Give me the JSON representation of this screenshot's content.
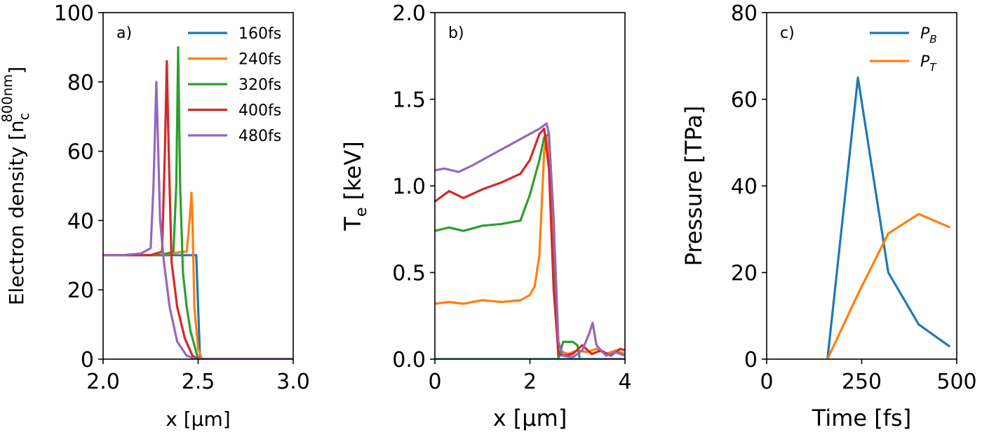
{
  "colors": {
    "blue": "#1f77b4",
    "orange": "#ff7f0e",
    "green": "#2ca02c",
    "red": "#d62728",
    "purple": "#9467bd"
  },
  "chart_data": [
    {
      "type": "line",
      "panel_label": "a)",
      "xlabel": "x [μm]",
      "ylabel_text": "Electron density [n",
      "ylabel_sub": "c",
      "ylabel_sup": "800nm",
      "ylabel_close": "]",
      "xlim": [
        2.0,
        3.0
      ],
      "ylim": [
        0,
        100
      ],
      "xticks": [
        2.0,
        2.5,
        3.0
      ],
      "xtick_labels": [
        "2.0",
        "2.5",
        "3.0"
      ],
      "yticks": [
        0,
        20,
        40,
        60,
        80,
        100
      ],
      "ytick_labels": [
        "0",
        "20",
        "40",
        "60",
        "80",
        "100"
      ],
      "legend_position": "top-right",
      "series": [
        {
          "name": "160fs",
          "color": "blue",
          "x": [
            2.0,
            2.49,
            2.49,
            2.5,
            2.51,
            3.0
          ],
          "y": [
            30,
            30,
            30,
            15,
            0,
            0
          ]
        },
        {
          "name": "240fs",
          "color": "orange",
          "x": [
            2.0,
            2.3,
            2.42,
            2.44,
            2.455,
            2.465,
            2.47,
            2.48,
            2.5,
            2.52,
            3.0
          ],
          "y": [
            30,
            30,
            31,
            31,
            40,
            48,
            40,
            15,
            3,
            0,
            0
          ]
        },
        {
          "name": "320fs",
          "color": "green",
          "x": [
            2.0,
            2.3,
            2.37,
            2.385,
            2.395,
            2.405,
            2.42,
            2.44,
            2.46,
            2.49,
            2.5,
            3.0
          ],
          "y": [
            30,
            30,
            31,
            50,
            90,
            50,
            25,
            15,
            8,
            2,
            0,
            0
          ]
        },
        {
          "name": "400fs",
          "color": "red",
          "x": [
            2.0,
            2.25,
            2.31,
            2.325,
            2.335,
            2.345,
            2.36,
            2.39,
            2.43,
            2.47,
            2.5,
            3.0
          ],
          "y": [
            30,
            30,
            31,
            60,
            86,
            60,
            28,
            15,
            6,
            1,
            0,
            0
          ]
        },
        {
          "name": "480fs",
          "color": "purple",
          "x": [
            2.0,
            2.1,
            2.2,
            2.25,
            2.265,
            2.28,
            2.29,
            2.3,
            2.32,
            2.35,
            2.39,
            2.44,
            2.49,
            3.0
          ],
          "y": [
            30,
            30,
            30.5,
            32,
            50,
            80,
            60,
            40,
            28,
            15,
            5,
            1,
            0,
            0
          ]
        }
      ]
    },
    {
      "type": "line",
      "panel_label": "b)",
      "xlabel": "x [μm]",
      "ylabel_text": "T",
      "ylabel_sub": "e",
      "ylabel_close": " [keV]",
      "xlim": [
        0,
        4
      ],
      "ylim": [
        0,
        2.0
      ],
      "xticks": [
        0,
        2,
        4
      ],
      "xtick_labels": [
        "0",
        "2",
        "4"
      ],
      "yticks": [
        0,
        0.5,
        1.0,
        1.5,
        2.0
      ],
      "ytick_labels": [
        "0.0",
        "0.5",
        "1.0",
        "1.5",
        "2.0"
      ],
      "series": [
        {
          "name": "160fs",
          "color": "blue",
          "x": [
            0,
            4
          ],
          "y": [
            0,
            0
          ]
        },
        {
          "name": "240fs",
          "color": "orange",
          "x": [
            0,
            0.3,
            0.6,
            1.0,
            1.4,
            1.8,
            2.0,
            2.1,
            2.2,
            2.25,
            2.3,
            2.35,
            2.45,
            2.55,
            2.6,
            2.8,
            3.0,
            3.2,
            3.4,
            3.6,
            3.8,
            4.0
          ],
          "y": [
            0.32,
            0.33,
            0.32,
            0.34,
            0.33,
            0.34,
            0.37,
            0.42,
            0.6,
            0.9,
            1.2,
            1.28,
            1.0,
            0.4,
            0.05,
            0.03,
            0.05,
            0.04,
            0.06,
            0.03,
            0.05,
            0.03
          ]
        },
        {
          "name": "320fs",
          "color": "green",
          "x": [
            0,
            0.3,
            0.6,
            1.0,
            1.4,
            1.8,
            2.0,
            2.1,
            2.2,
            2.3,
            2.4,
            2.5,
            2.55,
            2.6,
            2.7,
            2.9,
            3.0,
            3.05
          ],
          "y": [
            0.74,
            0.76,
            0.74,
            0.77,
            0.78,
            0.8,
            0.95,
            1.05,
            1.15,
            1.28,
            1.3,
            0.8,
            0.3,
            0.0,
            0.1,
            0.1,
            0.08,
            0.0
          ]
        },
        {
          "name": "400fs",
          "color": "red",
          "x": [
            0,
            0.3,
            0.6,
            1.0,
            1.4,
            1.8,
            2.0,
            2.2,
            2.3,
            2.4,
            2.5,
            2.6,
            2.7,
            2.9,
            3.1,
            3.3,
            3.5,
            3.7,
            3.9,
            4.0
          ],
          "y": [
            0.91,
            0.97,
            0.93,
            0.98,
            1.02,
            1.07,
            1.15,
            1.3,
            1.33,
            1.1,
            0.4,
            0.03,
            0.02,
            0.03,
            0.08,
            0.03,
            0.05,
            0.02,
            0.06,
            0.05
          ]
        },
        {
          "name": "480fs",
          "color": "purple",
          "x": [
            0,
            0.2,
            0.5,
            0.8,
            1.2,
            1.6,
            2.0,
            2.2,
            2.35,
            2.4,
            2.5,
            2.6,
            2.7,
            2.9,
            3.1,
            3.25,
            3.32,
            3.4,
            3.6,
            3.8,
            4.0
          ],
          "y": [
            1.09,
            1.1,
            1.08,
            1.12,
            1.18,
            1.24,
            1.3,
            1.33,
            1.36,
            1.3,
            0.8,
            0.1,
            0.02,
            0.01,
            0.05,
            0.15,
            0.21,
            0.08,
            0.02,
            0.04,
            0.02
          ]
        }
      ]
    },
    {
      "type": "line",
      "panel_label": "c)",
      "xlabel": "Time [fs]",
      "ylabel": "Pressure [TPa]",
      "xlim": [
        0,
        500
      ],
      "ylim": [
        0,
        80
      ],
      "xticks": [
        0,
        250,
        500
      ],
      "xtick_labels": [
        "0",
        "250",
        "500"
      ],
      "yticks": [
        0,
        20,
        40,
        60,
        80
      ],
      "ytick_labels": [
        "0",
        "20",
        "40",
        "60",
        "80"
      ],
      "legend_position": "top-right",
      "series": [
        {
          "name": "P",
          "subscript": "B",
          "color": "blue",
          "x": [
            160,
            240,
            320,
            400,
            480
          ],
          "y": [
            0,
            65,
            20,
            8,
            3
          ]
        },
        {
          "name": "P",
          "subscript": "T",
          "color": "orange",
          "x": [
            160,
            240,
            320,
            400,
            480
          ],
          "y": [
            0,
            15,
            29,
            33.5,
            30.5
          ]
        }
      ]
    }
  ]
}
